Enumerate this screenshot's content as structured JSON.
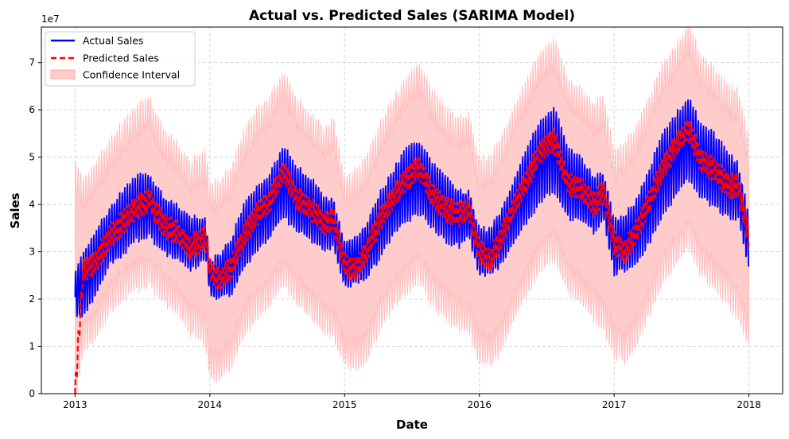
{
  "chart_data": {
    "type": "line",
    "title": "Actual vs. Predicted Sales (SARIMA Model)",
    "xlabel": "Date",
    "ylabel": "Sales",
    "y_offset_text": "1e7",
    "x_ticks": [
      "2013",
      "2014",
      "2015",
      "2016",
      "2017",
      "2018"
    ],
    "y_ticks": [
      "0",
      "1",
      "2",
      "3",
      "4",
      "5",
      "6",
      "7"
    ],
    "xlim": [
      2012.75,
      2018.25
    ],
    "ylim": [
      0,
      7.75
    ],
    "y_unit_multiplier": 10000000,
    "grid": true,
    "legend_position": "top-left",
    "series": [
      {
        "name": "Actual Sales",
        "color": "#0000ff",
        "style": "solid"
      },
      {
        "name": "Predicted Sales",
        "color": "#ff0000",
        "style": "dashed"
      },
      {
        "name": "Confidence Interval",
        "color": "#ffcccc",
        "style": "band"
      }
    ],
    "x": [
      2013.0,
      2013.06,
      2013.16,
      2013.25,
      2013.35,
      2013.45,
      2013.55,
      2013.65,
      2013.75,
      2013.85,
      2013.92,
      2013.97,
      2014.0,
      2014.08,
      2014.16,
      2014.25,
      2014.35,
      2014.45,
      2014.55,
      2014.65,
      2014.75,
      2014.85,
      2014.92,
      2015.0,
      2015.08,
      2015.16,
      2015.25,
      2015.35,
      2015.45,
      2015.55,
      2015.65,
      2015.75,
      2015.85,
      2015.92,
      2016.0,
      2016.08,
      2016.16,
      2016.25,
      2016.35,
      2016.45,
      2016.55,
      2016.65,
      2016.75,
      2016.85,
      2016.92,
      2017.0,
      2017.08,
      2017.16,
      2017.25,
      2017.35,
      2017.45,
      2017.55,
      2017.65,
      2017.75,
      2017.85,
      2017.92,
      2018.0
    ],
    "actual_mid": [
      2.1,
      2.3,
      2.8,
      3.3,
      3.6,
      3.9,
      4.0,
      3.6,
      3.4,
      3.2,
      3.2,
      3.3,
      2.4,
      2.5,
      2.7,
      3.3,
      3.7,
      4.0,
      4.5,
      4.1,
      3.9,
      3.6,
      3.6,
      2.7,
      2.8,
      3.0,
      3.5,
      4.0,
      4.4,
      4.6,
      4.2,
      3.9,
      3.7,
      3.8,
      3.0,
      3.0,
      3.3,
      3.8,
      4.4,
      4.9,
      5.2,
      4.5,
      4.3,
      4.0,
      4.2,
      3.1,
      3.2,
      3.4,
      3.9,
      4.6,
      5.0,
      5.4,
      4.9,
      4.7,
      4.4,
      4.3,
      3.2
    ],
    "actual_spread": [
      0.5,
      0.7,
      0.7,
      0.6,
      0.7,
      0.7,
      0.7,
      0.6,
      0.6,
      0.6,
      0.5,
      0.4,
      0.4,
      0.5,
      0.6,
      0.7,
      0.7,
      0.7,
      0.8,
      0.7,
      0.7,
      0.6,
      0.5,
      0.5,
      0.5,
      0.6,
      0.7,
      0.7,
      0.8,
      0.8,
      0.7,
      0.7,
      0.6,
      0.5,
      0.5,
      0.5,
      0.6,
      0.7,
      0.8,
      0.9,
      0.9,
      0.8,
      0.7,
      0.6,
      0.5,
      0.6,
      0.6,
      0.7,
      0.8,
      0.9,
      0.9,
      0.9,
      0.8,
      0.8,
      0.7,
      0.6,
      0.6
    ],
    "predicted": [
      0.0,
      2.6,
      2.8,
      3.3,
      3.6,
      3.9,
      4.1,
      3.6,
      3.4,
      3.1,
      3.2,
      3.3,
      2.6,
      2.4,
      2.7,
      3.3,
      3.8,
      4.1,
      4.7,
      4.1,
      3.9,
      3.6,
      3.7,
      2.7,
      2.6,
      3.0,
      3.6,
      4.1,
      4.5,
      4.8,
      4.2,
      3.9,
      3.8,
      3.9,
      3.0,
      2.8,
      3.3,
      3.9,
      4.5,
      5.1,
      5.4,
      4.5,
      4.3,
      4.0,
      4.3,
      3.2,
      3.0,
      3.4,
      4.0,
      4.7,
      5.2,
      5.6,
      4.9,
      4.7,
      4.4,
      4.4,
      3.3
    ],
    "ci_lower": [
      0.0,
      1.2,
      1.5,
      2.0,
      2.3,
      2.5,
      2.6,
      2.3,
      2.0,
      1.6,
      1.5,
      1.3,
      0.6,
      0.6,
      0.9,
      1.5,
      1.9,
      2.2,
      2.6,
      2.2,
      1.9,
      1.6,
      1.5,
      0.9,
      0.8,
      1.0,
      1.6,
      2.1,
      2.4,
      2.7,
      2.2,
      1.9,
      1.7,
      1.6,
      1.0,
      0.9,
      1.2,
      1.8,
      2.4,
      2.9,
      3.2,
      2.5,
      2.2,
      1.9,
      1.7,
      1.1,
      1.0,
      1.3,
      1.9,
      2.6,
      3.0,
      3.4,
      2.8,
      2.5,
      2.2,
      1.9,
      1.3
    ],
    "ci_upper": [
      4.6,
      4.2,
      4.6,
      5.0,
      5.4,
      5.7,
      6.0,
      5.3,
      5.0,
      4.6,
      4.7,
      4.8,
      4.1,
      4.2,
      4.5,
      5.2,
      5.7,
      6.0,
      6.5,
      5.9,
      5.6,
      5.3,
      5.5,
      4.2,
      4.4,
      4.7,
      5.3,
      5.9,
      6.3,
      6.7,
      6.1,
      5.7,
      5.5,
      5.6,
      4.6,
      4.7,
      5.1,
      5.7,
      6.3,
      6.9,
      7.2,
      6.4,
      6.1,
      5.8,
      6.0,
      4.8,
      5.0,
      5.3,
      5.9,
      6.6,
      7.0,
      7.5,
      6.8,
      6.5,
      6.2,
      6.1,
      5.1
    ]
  }
}
